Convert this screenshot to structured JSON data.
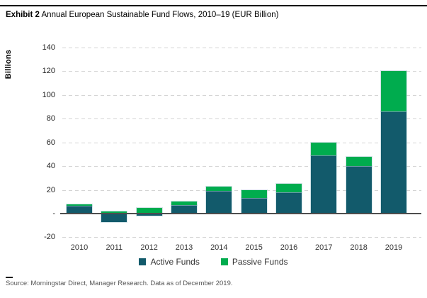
{
  "header": {
    "exhibit_label": "Exhibit 2",
    "title": "Annual European Sustainable Fund Flows, 2010–19 (EUR Billion)"
  },
  "footer": {
    "source": "Source: Morningstar Direct, Manager Research. Data as of December 2019."
  },
  "colors": {
    "active_funds": "#125A6B",
    "passive_funds": "#00AC4E",
    "gridline": "#d4d4d4",
    "zero_axis": "#4d4d4d"
  },
  "chart_data": {
    "type": "bar",
    "stacked": true,
    "title": "Annual European Sustainable Fund Flows, 2010–19 (EUR Billion)",
    "ylabel": "Billions",
    "xlabel": "",
    "categories": [
      "2010",
      "2011",
      "2012",
      "2013",
      "2014",
      "2015",
      "2016",
      "2017",
      "2018",
      "2019"
    ],
    "series": [
      {
        "name": "Active Funds",
        "color": "#125A6B",
        "values": [
          6.5,
          -7,
          -1.5,
          7,
          19,
          13,
          18,
          49,
          40,
          86
        ]
      },
      {
        "name": "Passive Funds",
        "color": "#00AC4E",
        "values": [
          1.5,
          2,
          4.5,
          3,
          4,
          7,
          7,
          11,
          8,
          34
        ]
      }
    ],
    "totals": [
      8,
      -5,
      3,
      10,
      23,
      20,
      25,
      60,
      48,
      120
    ],
    "ylim": [
      -20,
      140
    ],
    "yticks": [
      {
        "value": 140,
        "label": "140"
      },
      {
        "value": 120,
        "label": "120"
      },
      {
        "value": 100,
        "label": "100"
      },
      {
        "value": 80,
        "label": "80"
      },
      {
        "value": 60,
        "label": "60"
      },
      {
        "value": 40,
        "label": "40"
      },
      {
        "value": 20,
        "label": "20"
      },
      {
        "value": 0,
        "label": "-"
      },
      {
        "value": -20,
        "label": "-20"
      }
    ],
    "grid": "horizontal dashed",
    "legend_position": "bottom center"
  }
}
